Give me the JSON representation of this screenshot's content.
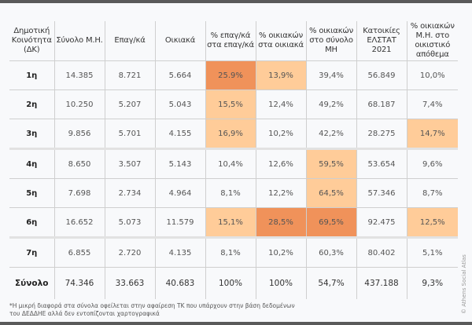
{
  "headers": [
    "Δημοτική Κοινότητα (ΔΚ)",
    "Σύνολο Μ.Η.",
    "Επαγ/κά",
    "Οικιακά",
    "% επαγ/κά στα επαγ/κά",
    "% οικιακών στα οικιακά",
    "% οικιακών στο σύνολο ΜΗ",
    "Κατοικίες ΕΛΣΤΑΤ 2021",
    "% οικιακών Μ.Η. στο οικιστικό απόθεμα"
  ],
  "rows": [
    {
      "cells": [
        "1η",
        "14.385",
        "8.721",
        "5.664",
        "25.9%",
        "13,9%",
        "39,4%",
        "56.849",
        "10,0%"
      ],
      "highlight": [
        0,
        0,
        0,
        0,
        2,
        1,
        0,
        0,
        0
      ]
    },
    {
      "cells": [
        "2η",
        "10.250",
        "5.207",
        "5.043",
        "15,5%",
        "12,4%",
        "49,2%",
        "68.187",
        "7,4%"
      ],
      "highlight": [
        0,
        0,
        0,
        0,
        1,
        0,
        0,
        0,
        0
      ]
    },
    {
      "cells": [
        "3η",
        "9.856",
        "5.701",
        "4.155",
        "16,9%",
        "10,2%",
        "42,2%",
        "28.275",
        "14,7%"
      ],
      "highlight": [
        0,
        0,
        0,
        0,
        1,
        0,
        0,
        0,
        1
      ]
    },
    {
      "cells": [
        "4η",
        "8.650",
        "3.507",
        "5.143",
        "10,4%",
        "12,6%",
        "59,5%",
        "53.654",
        "9,6%"
      ],
      "highlight": [
        0,
        0,
        0,
        0,
        0,
        0,
        1,
        0,
        0
      ]
    },
    {
      "cells": [
        "5η",
        "7.698",
        "2.734",
        "4.964",
        "8,1%",
        "12,2%",
        "64,5%",
        "57.346",
        "8,7%"
      ],
      "highlight": [
        0,
        0,
        0,
        0,
        0,
        0,
        1,
        0,
        0
      ]
    },
    {
      "cells": [
        "6η",
        "16.652",
        "5.073",
        "11.579",
        "15,1%",
        "28,5%",
        "69,5%",
        "92.475",
        "12,5%"
      ],
      "highlight": [
        0,
        0,
        0,
        0,
        1,
        2,
        2,
        0,
        1
      ]
    },
    {
      "cells": [
        "7η",
        "6.855",
        "2.720",
        "4.135",
        "8,1%",
        "10,2%",
        "60,3%",
        "80.402",
        "5,1%"
      ],
      "highlight": [
        0,
        0,
        0,
        0,
        0,
        0,
        0,
        0,
        0
      ]
    }
  ],
  "total": [
    "Σύνολο",
    "74.346",
    "33.663",
    "40.683",
    "100%",
    "100%",
    "54,7%",
    "437.188",
    "9,3%"
  ],
  "footnote_line1": "*Η μικρή διαφορά στα σύνολα οφείλεται στην αφαίρεση ΤΚ που υπάρχουν στην βάση δεδομένων",
  "footnote_line2": "του ΔΕΔΔΗΕ αλλά δεν εντοπίζονται χαρτογραφικά",
  "copyright": "© Athens Social Atlas",
  "colors": {
    "highlight_light": "#ffcc99",
    "highlight_strong": "#f0925a"
  }
}
